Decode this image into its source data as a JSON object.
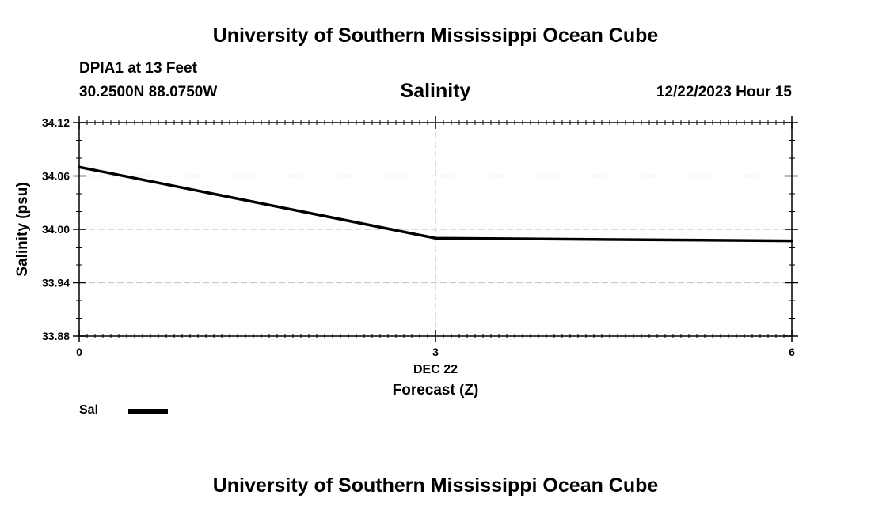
{
  "header": {
    "title": "University of Southern Mississippi Ocean Cube",
    "station": "DPIA1 at 13 Feet",
    "coords": "30.2500N  88.0750W",
    "datetime": "12/22/2023 Hour 15"
  },
  "footer": {
    "title": "University of Southern Mississippi Ocean Cube"
  },
  "legend": {
    "label": "Sal",
    "color": "#000000"
  },
  "chart_data": {
    "type": "line",
    "title": "Salinity",
    "xlabel": "Forecast (Z)",
    "xlabel_date": "DEC 22",
    "ylabel": "Salinity (psu)",
    "xlim": [
      0,
      6
    ],
    "ylim": [
      33.88,
      34.12
    ],
    "x_ticks": [
      0,
      3,
      6
    ],
    "x_tick_labels": [
      "0",
      "3",
      "6"
    ],
    "y_ticks": [
      33.88,
      33.94,
      34.0,
      34.06,
      34.12
    ],
    "y_tick_labels": [
      "33.88",
      "33.94",
      "34.00",
      "34.06",
      "34.12"
    ],
    "grid": true,
    "series": [
      {
        "name": "Sal",
        "x": [
          0,
          3,
          6
        ],
        "values": [
          34.07,
          33.99,
          33.987
        ]
      }
    ]
  }
}
